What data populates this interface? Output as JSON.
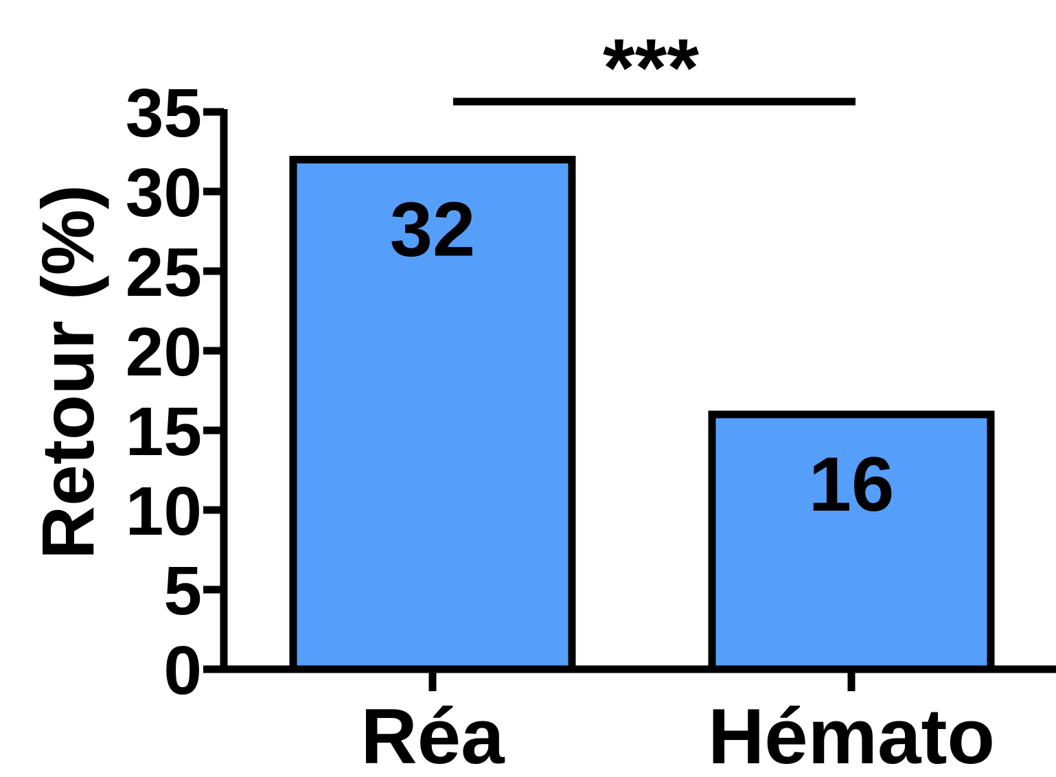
{
  "chart_data": {
    "type": "bar",
    "categories": [
      "Réa",
      "Hémato"
    ],
    "values": [
      32,
      16
    ],
    "data_labels": [
      "32",
      "16"
    ],
    "ylabel": "Retour (%)",
    "xlabel": "",
    "ylim": [
      0,
      35
    ],
    "yticks": [
      0,
      5,
      10,
      15,
      20,
      25,
      30,
      35
    ],
    "ytick_labels": [
      "0",
      "5",
      "10",
      "15",
      "20",
      "25",
      "30",
      "35"
    ],
    "grid": false,
    "bar_color": "#559ffb",
    "bar_edge_color": "#000000",
    "significance": {
      "between": [
        "Réa",
        "Hémato"
      ],
      "label": "***"
    }
  }
}
